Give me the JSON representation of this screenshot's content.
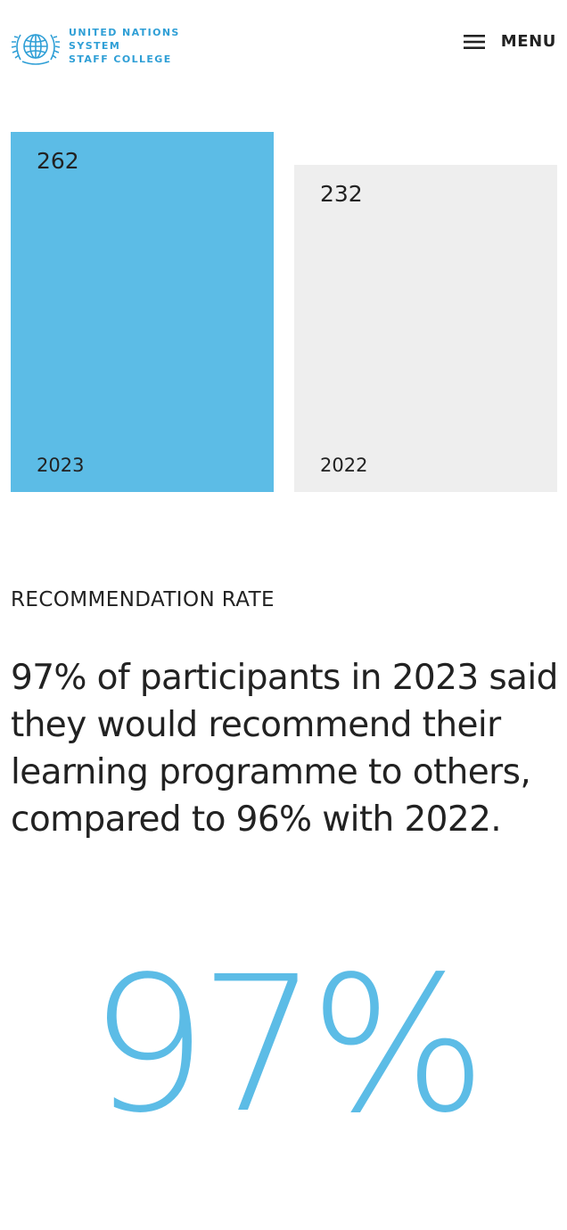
{
  "header": {
    "logo": {
      "line1": "UNITED NATIONS",
      "line2": "SYSTEM",
      "line3": "STAFF COLLEGE",
      "icon": "un-emblem-icon",
      "color": "#2f9fd6"
    },
    "menu": {
      "label": "MENU",
      "icon": "hamburger-icon"
    }
  },
  "bars": [
    {
      "value": "262",
      "year": "2023",
      "color": "#5cbce6",
      "amount": 262
    },
    {
      "value": "232",
      "year": "2022",
      "color": "#eeeeee",
      "amount": 232
    }
  ],
  "recommendation": {
    "eyebrow": "RECOMMENDATION RATE",
    "statement": "97% of participants in 2023 said they would recommend their learning programme to others, compared to 96% with 2022.",
    "big_stat": "97%",
    "accent_color": "#5cbce6"
  }
}
